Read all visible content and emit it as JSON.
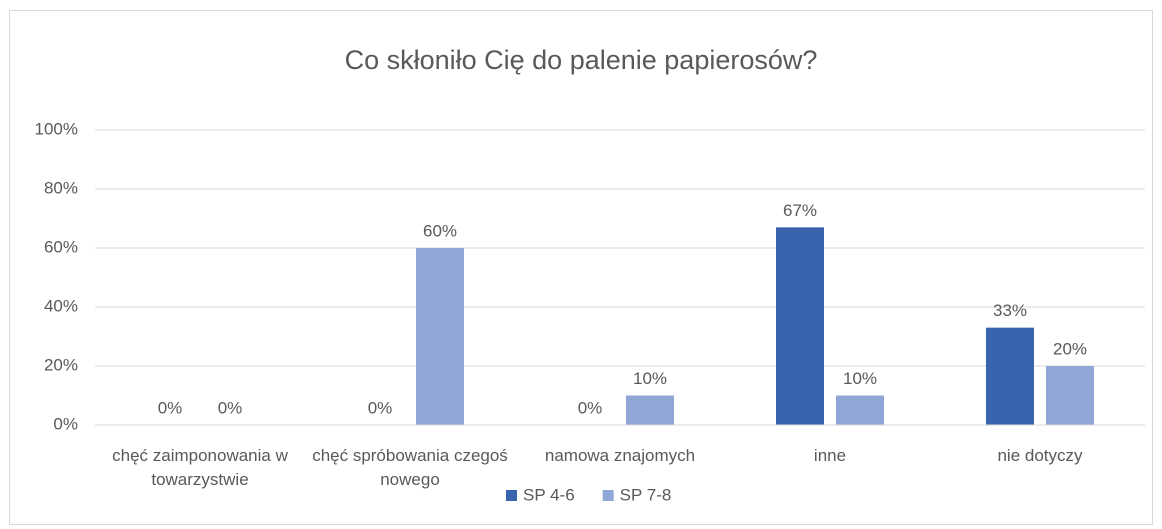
{
  "chart_data": {
    "type": "bar",
    "title": "Co skłoniło Cię do palenie papierosów?",
    "categories": [
      "chęć zaimponowania w towarzystwie",
      "chęć spróbowania czegoś nowego",
      "namowa znajomych",
      "inne",
      "nie dotyczy"
    ],
    "series": [
      {
        "name": "SP 4-6",
        "color": "#3a63ad",
        "values": [
          0,
          0,
          0,
          67,
          33
        ],
        "value_labels": [
          "0%",
          "0%",
          "0%",
          "67%",
          "33%"
        ]
      },
      {
        "name": "SP 7-8",
        "color": "#8fa6d6",
        "values": [
          0,
          60,
          10,
          10,
          20
        ],
        "value_labels": [
          "0%",
          "60%",
          "10%",
          "10%",
          "20%"
        ]
      }
    ],
    "ylim": [
      0,
      100
    ],
    "yticks": [
      {
        "value": 0,
        "label": "0%"
      },
      {
        "value": 20,
        "label": "20%"
      },
      {
        "value": 40,
        "label": "40%"
      },
      {
        "value": 60,
        "label": "60%"
      },
      {
        "value": 80,
        "label": "80%"
      },
      {
        "value": 100,
        "label": "100%"
      }
    ],
    "grid": true,
    "legend": "bottom"
  }
}
